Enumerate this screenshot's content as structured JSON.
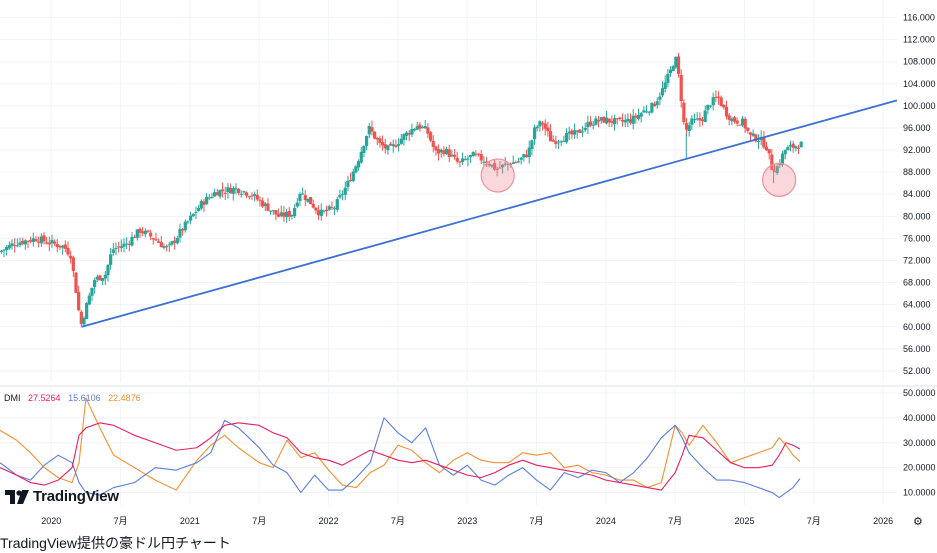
{
  "caption": "TradingView提供の豪ドル円チャート",
  "logo_text": "TradingView",
  "settings_icon": "gear-icon",
  "colors": {
    "up": "#26a69a",
    "down": "#ef5350",
    "trendline": "#3b6fd6",
    "marker": "#f48f9a",
    "plus_di": "#e91e63",
    "minus_di": "#5b7fe0",
    "adx": "#f5902e",
    "grid": "#f0f3fa"
  },
  "chart_data": [
    {
      "type": "candlestick",
      "title": "",
      "ylim": [
        50,
        117
      ],
      "y_ticks": [
        "116.000",
        "112.000",
        "108.000",
        "104.000",
        "100.000",
        "96.000",
        "92.000",
        "88.000",
        "84.000",
        "80.000",
        "76.000",
        "72.000",
        "68.000",
        "64.000",
        "60.000",
        "56.000",
        "52.000"
      ],
      "y_tick_values": [
        116,
        112,
        108,
        104,
        100,
        96,
        92,
        88,
        84,
        80,
        76,
        72,
        68,
        64,
        60,
        56,
        52
      ],
      "x_ticks": [
        "2020",
        "7月",
        "2021",
        "7月",
        "2022",
        "7月",
        "2023",
        "7月",
        "2024",
        "7月",
        "2025",
        "7月",
        "2026"
      ],
      "x_tick_values": [
        2020.0,
        2020.5,
        2021.0,
        2021.5,
        2022.0,
        2022.5,
        2023.0,
        2023.5,
        2024.0,
        2024.5,
        2025.0,
        2025.5,
        2026.0
      ],
      "xlim": [
        2019.63,
        2026.1
      ],
      "price_path": [
        [
          2019.63,
          73.5
        ],
        [
          2019.75,
          75.2
        ],
        [
          2019.9,
          76.0
        ],
        [
          2020.0,
          75.2
        ],
        [
          2020.1,
          74.5
        ],
        [
          2020.15,
          73.0
        ],
        [
          2020.2,
          64.5
        ],
        [
          2020.22,
          60.0
        ],
        [
          2020.26,
          63.5
        ],
        [
          2020.32,
          68.5
        ],
        [
          2020.4,
          69.5
        ],
        [
          2020.45,
          74.0
        ],
        [
          2020.55,
          75.0
        ],
        [
          2020.65,
          77.5
        ],
        [
          2020.75,
          76.0
        ],
        [
          2020.85,
          74.0
        ],
        [
          2020.95,
          77.5
        ],
        [
          2021.1,
          82.5
        ],
        [
          2021.2,
          84.5
        ],
        [
          2021.35,
          85.0
        ],
        [
          2021.45,
          84.0
        ],
        [
          2021.55,
          82.0
        ],
        [
          2021.65,
          80.0
        ],
        [
          2021.75,
          80.5
        ],
        [
          2021.8,
          84.5
        ],
        [
          2021.88,
          82.5
        ],
        [
          2021.95,
          80.5
        ],
        [
          2022.05,
          81.5
        ],
        [
          2022.15,
          86.0
        ],
        [
          2022.22,
          90.0
        ],
        [
          2022.3,
          96.0
        ],
        [
          2022.38,
          93.0
        ],
        [
          2022.45,
          92.0
        ],
        [
          2022.55,
          94.5
        ],
        [
          2022.65,
          96.5
        ],
        [
          2022.72,
          95.5
        ],
        [
          2022.78,
          91.5
        ],
        [
          2022.85,
          92.0
        ],
        [
          2022.95,
          89.5
        ],
        [
          2023.05,
          91.0
        ],
        [
          2023.15,
          90.0
        ],
        [
          2023.22,
          88.5
        ],
        [
          2023.3,
          89.5
        ],
        [
          2023.38,
          90.0
        ],
        [
          2023.45,
          91.5
        ],
        [
          2023.5,
          96.0
        ],
        [
          2023.55,
          97.0
        ],
        [
          2023.62,
          93.5
        ],
        [
          2023.72,
          94.5
        ],
        [
          2023.8,
          95.0
        ],
        [
          2023.9,
          97.0
        ],
        [
          2024.0,
          97.5
        ],
        [
          2024.1,
          97.0
        ],
        [
          2024.2,
          97.5
        ],
        [
          2024.28,
          99.0
        ],
        [
          2024.35,
          100.0
        ],
        [
          2024.42,
          103.0
        ],
        [
          2024.48,
          106.5
        ],
        [
          2024.51,
          109.0
        ],
        [
          2024.54,
          104.5
        ],
        [
          2024.58,
          95.0
        ],
        [
          2024.62,
          97.0
        ],
        [
          2024.7,
          97.5
        ],
        [
          2024.76,
          100.5
        ],
        [
          2024.82,
          101.5
        ],
        [
          2024.87,
          99.0
        ],
        [
          2024.92,
          97.5
        ],
        [
          2025.0,
          97.0
        ],
        [
          2025.05,
          94.5
        ],
        [
          2025.12,
          94.0
        ],
        [
          2025.17,
          92.5
        ],
        [
          2025.21,
          88.5
        ],
        [
          2025.25,
          89.0
        ],
        [
          2025.3,
          92.0
        ],
        [
          2025.35,
          92.5
        ],
        [
          2025.4,
          93.0
        ]
      ],
      "trendline": {
        "from": [
          2020.22,
          60.0
        ],
        "to": [
          2026.1,
          101.0
        ]
      },
      "highlight_circles": [
        {
          "x": 2023.22,
          "y": 87.4
        },
        {
          "x": 2025.25,
          "y": 86.6
        }
      ]
    },
    {
      "type": "line",
      "title": "DMI",
      "series": [
        {
          "name": "",
          "values_label": "27.5264",
          "color_key": "plus_di"
        },
        {
          "name": "",
          "values_label": "15.6106",
          "color_key": "minus_di"
        },
        {
          "name": "",
          "values_label": "22.4876",
          "color_key": "adx"
        }
      ],
      "ylim": [
        5,
        52
      ],
      "y_ticks": [
        "50.0000",
        "40.0000",
        "30.0000",
        "20.0000",
        "10.0000"
      ],
      "y_tick_values": [
        50,
        40,
        30,
        20,
        10
      ],
      "x": [
        2019.63,
        2019.75,
        2019.85,
        2019.95,
        2020.05,
        2020.15,
        2020.2,
        2020.25,
        2020.35,
        2020.45,
        2020.6,
        2020.75,
        2020.9,
        2021.05,
        2021.15,
        2021.25,
        2021.35,
        2021.5,
        2021.6,
        2021.7,
        2021.8,
        2021.9,
        2022.0,
        2022.1,
        2022.2,
        2022.3,
        2022.4,
        2022.5,
        2022.6,
        2022.7,
        2022.8,
        2022.9,
        2023.0,
        2023.1,
        2023.2,
        2023.3,
        2023.4,
        2023.5,
        2023.6,
        2023.7,
        2023.8,
        2023.9,
        2024.0,
        2024.1,
        2024.2,
        2024.3,
        2024.4,
        2024.5,
        2024.55,
        2024.6,
        2024.7,
        2024.8,
        2024.9,
        2025.0,
        2025.1,
        2025.2,
        2025.25,
        2025.3,
        2025.35,
        2025.4
      ],
      "plus_di": [
        20,
        17,
        14,
        13,
        15,
        20,
        33,
        36,
        38,
        37,
        33,
        30,
        27,
        28,
        32,
        37,
        38,
        37,
        34,
        32,
        26,
        24,
        23,
        21,
        24,
        27,
        25,
        23,
        22,
        23,
        21,
        19,
        17,
        16,
        18,
        21,
        23,
        21,
        20,
        19,
        18,
        17,
        15,
        14,
        13,
        12,
        11,
        18,
        25,
        33,
        32,
        27,
        22,
        20,
        20,
        21,
        25,
        30,
        29,
        27.5
      ],
      "minus_di": [
        22,
        17,
        15,
        21,
        25,
        22,
        14,
        10,
        9,
        12,
        14,
        20,
        19,
        22,
        26,
        39,
        36,
        28,
        21,
        18,
        10,
        17,
        11,
        11,
        16,
        22,
        40,
        34,
        30,
        36,
        21,
        17,
        21,
        15,
        13,
        17,
        20,
        15,
        11,
        18,
        16,
        19,
        18,
        14,
        18,
        24,
        32,
        37,
        32,
        26,
        20,
        15,
        15,
        14,
        12,
        10,
        8,
        10,
        12,
        15.6
      ],
      "adx": [
        35,
        31,
        26,
        20,
        16,
        14,
        22,
        48,
        36,
        25,
        20,
        15,
        11,
        23,
        29,
        33,
        28,
        22,
        20,
        31,
        24,
        26,
        19,
        13,
        12,
        18,
        21,
        29,
        27,
        22,
        18,
        23,
        26,
        23,
        22,
        22,
        26,
        25,
        26,
        20,
        21,
        18,
        17,
        15,
        15,
        12,
        14,
        37,
        34,
        29,
        37,
        30,
        22,
        24,
        26,
        28,
        32,
        29,
        25,
        22.5
      ]
    }
  ]
}
